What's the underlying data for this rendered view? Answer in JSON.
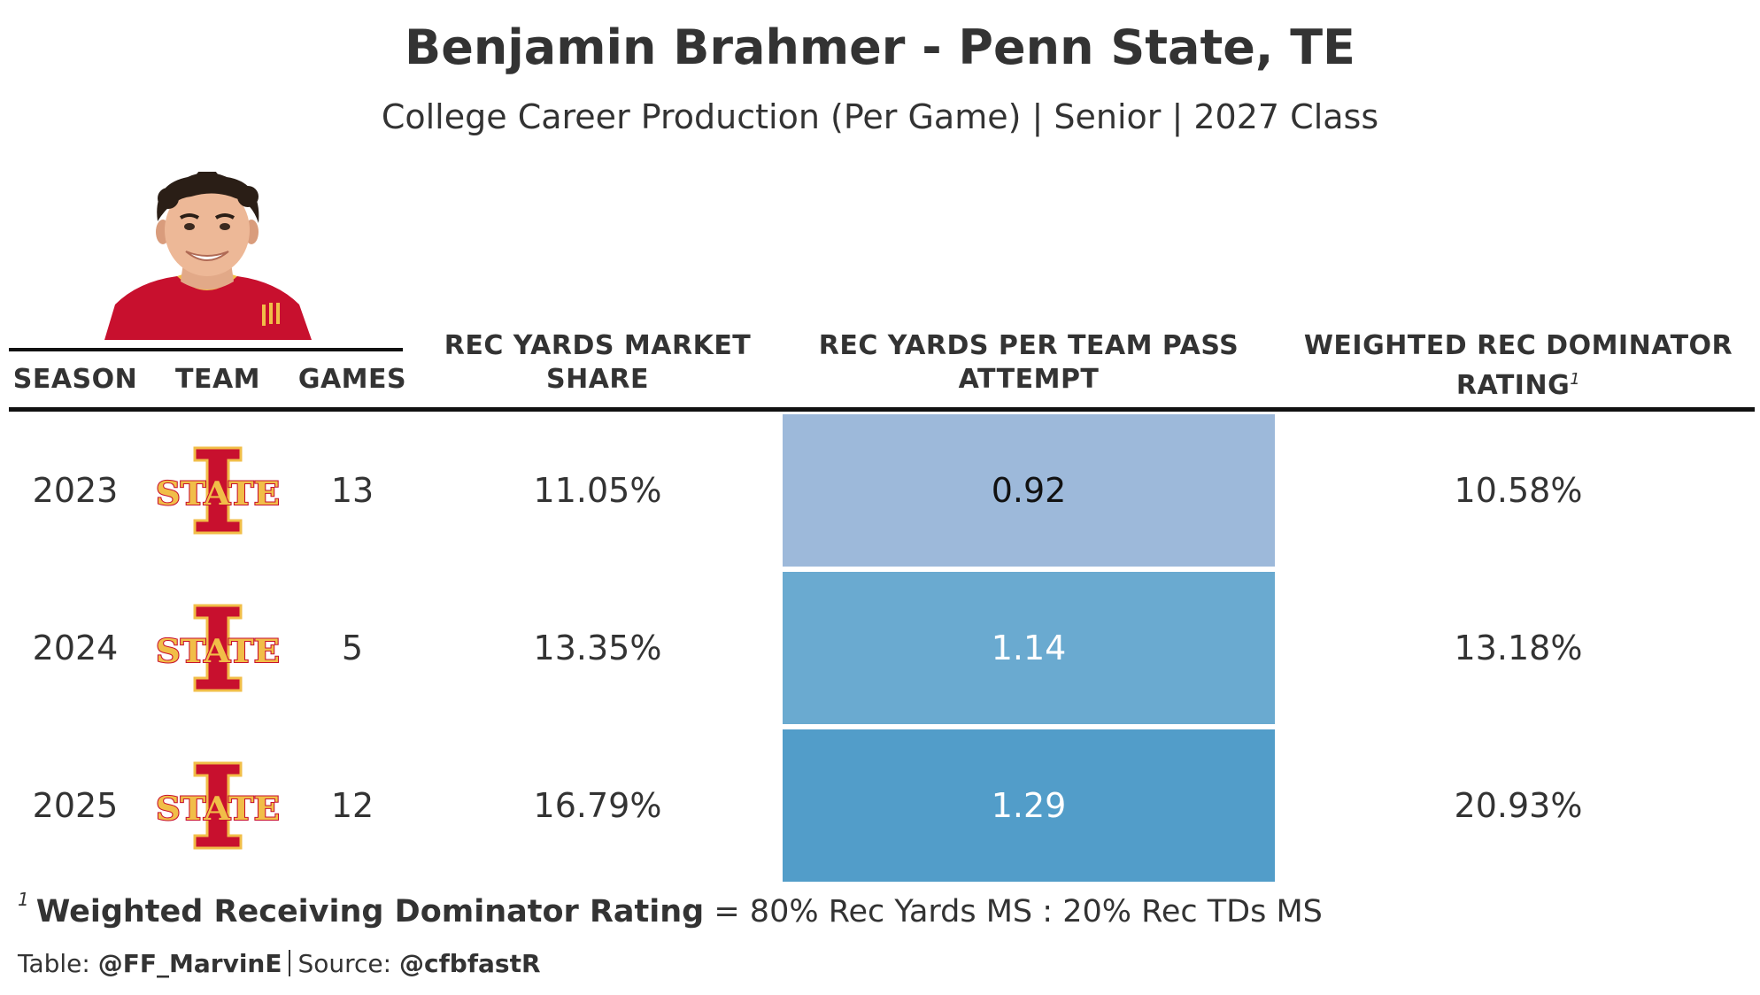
{
  "title": "Benjamin Brahmer - Penn State, TE",
  "subtitle": "College Career Production (Per Game) | Senior | 2027 Class",
  "headers": {
    "season": "SEASON",
    "team": "TEAM",
    "games": "GAMES",
    "rec_yards_ms_line1": "REC YARDS MARKET",
    "rec_yards_ms_line2": "SHARE",
    "rec_yards_ppa_line1": "REC YARDS PER TEAM PASS",
    "rec_yards_ppa_line2": "ATTEMPT",
    "wrdr_line1": "WEIGHTED REC DOMINATOR",
    "wrdr_line2": "RATING",
    "wrdr_marker": "1"
  },
  "team_logo": {
    "name": "iowa-state-logo",
    "letters": "STATE",
    "colors": [
      "#C8102E",
      "#F1BE48"
    ]
  },
  "heat_colors": {
    "low": "#9DB9DA",
    "mid": "#6AAAD0",
    "high": "#529DC9"
  },
  "chart_data": {
    "type": "table",
    "columns": [
      "SEASON",
      "TEAM",
      "GAMES",
      "REC YARDS MARKET SHARE",
      "REC YARDS PER TEAM PASS ATTEMPT",
      "WEIGHTED REC DOMINATOR RATING"
    ],
    "rows": [
      {
        "season": "2023",
        "team": "Iowa State",
        "games": "13",
        "rec_yards_ms": "11.05%",
        "rec_yards_ppa": "0.92",
        "wrdr": "10.58%",
        "ppa_value": 0.92
      },
      {
        "season": "2024",
        "team": "Iowa State",
        "games": "5",
        "rec_yards_ms": "13.35%",
        "rec_yards_ppa": "1.14",
        "wrdr": "13.18%",
        "ppa_value": 1.14
      },
      {
        "season": "2025",
        "team": "Iowa State",
        "games": "12",
        "rec_yards_ms": "16.79%",
        "rec_yards_ppa": "1.29",
        "wrdr": "20.93%",
        "ppa_value": 1.29
      }
    ]
  },
  "footnote": {
    "marker": "1",
    "term": "Weighted Receiving Dominator Rating",
    "definition": " = 80% Rec Yards MS : 20% Rec TDs MS"
  },
  "source": {
    "table_label": "Table: ",
    "table_author": "@FF_MarvinE",
    "source_label": "Source: ",
    "source_name": "@cfbfastR"
  }
}
